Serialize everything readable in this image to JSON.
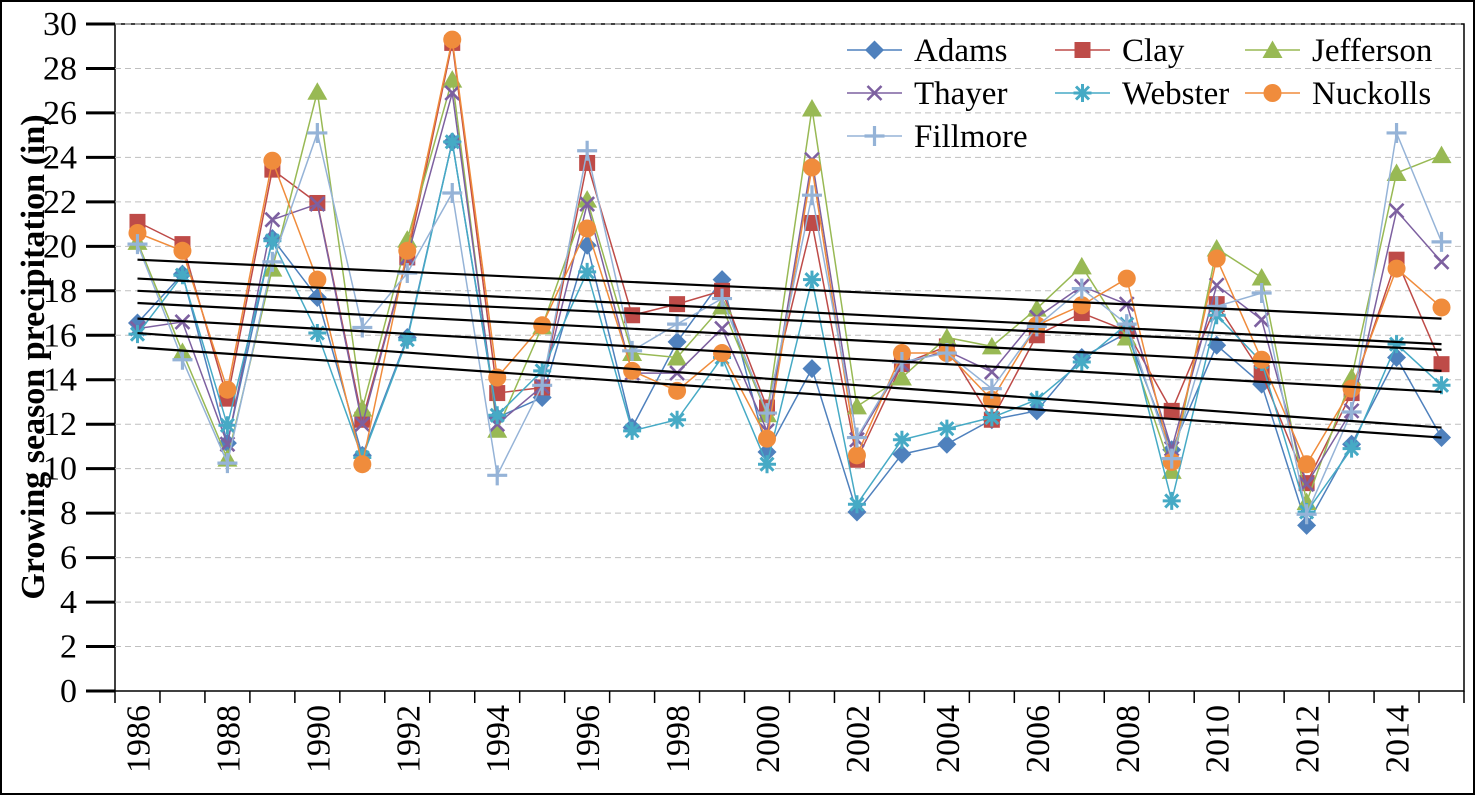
{
  "chart_data": {
    "type": "line",
    "title": "",
    "xlabel": "",
    "ylabel": "Growing season precipitation (in)",
    "ylim": [
      0,
      30
    ],
    "ytick_step": 2,
    "grid": "horizontal-dashed",
    "legend_position": "inside-top-right, 3 columns",
    "x": [
      1986,
      1987,
      1988,
      1989,
      1990,
      1991,
      1992,
      1993,
      1994,
      1995,
      1996,
      1997,
      1998,
      1999,
      2000,
      2001,
      2002,
      2003,
      2004,
      2005,
      2006,
      2007,
      2008,
      2009,
      2010,
      2011,
      2012,
      2013,
      2014,
      2015
    ],
    "x_label_every": 2,
    "series": [
      {
        "name": "Adams",
        "marker": "diamond",
        "color": "#4F81BD",
        "values": [
          16.55,
          18.75,
          11.15,
          20.35,
          17.7,
          10.6,
          15.9,
          24.7,
          12.3,
          13.2,
          20.05,
          11.85,
          15.7,
          18.5,
          10.75,
          14.5,
          8.05,
          10.65,
          11.1,
          12.2,
          12.6,
          15.0,
          16.1,
          10.85,
          15.55,
          13.8,
          7.45,
          11.1,
          15.0,
          11.4
        ]
      },
      {
        "name": "Clay",
        "marker": "square",
        "color": "#BE4B48",
        "values": [
          21.1,
          20.1,
          13.15,
          23.45,
          21.95,
          12.2,
          19.5,
          29.15,
          13.4,
          13.65,
          23.75,
          16.9,
          17.4,
          18.0,
          12.75,
          21.05,
          10.4,
          14.7,
          15.5,
          12.2,
          16.0,
          17.0,
          16.2,
          12.6,
          17.4,
          14.3,
          9.35,
          13.4,
          19.4,
          14.7
        ]
      },
      {
        "name": "Jefferson",
        "marker": "triangle",
        "color": "#98B954",
        "values": [
          20.2,
          15.25,
          10.45,
          19.0,
          26.95,
          12.7,
          20.3,
          27.5,
          11.75,
          16.4,
          22.1,
          15.2,
          15.0,
          17.3,
          12.45,
          26.2,
          12.8,
          14.1,
          15.9,
          15.5,
          17.2,
          19.1,
          15.9,
          9.9,
          19.9,
          18.6,
          8.5,
          14.1,
          23.3,
          24.1
        ]
      },
      {
        "name": "Thayer",
        "marker": "x",
        "color": "#7D60A0",
        "values": [
          16.3,
          16.6,
          11.1,
          21.2,
          21.9,
          12.0,
          19.5,
          26.9,
          12.0,
          13.7,
          21.9,
          14.3,
          14.3,
          16.3,
          11.7,
          23.9,
          11.3,
          14.7,
          15.3,
          14.35,
          16.8,
          18.2,
          17.4,
          10.9,
          18.25,
          16.7,
          9.3,
          12.6,
          21.6,
          19.3
        ]
      },
      {
        "name": "Webster",
        "marker": "star",
        "color": "#46AAC5",
        "values": [
          16.05,
          18.7,
          11.95,
          20.25,
          16.1,
          10.5,
          15.8,
          24.7,
          12.4,
          14.4,
          18.85,
          11.7,
          12.2,
          15.0,
          10.2,
          18.5,
          8.4,
          11.3,
          11.8,
          12.3,
          13.1,
          14.8,
          16.5,
          8.55,
          16.9,
          14.8,
          8.05,
          10.9,
          15.6,
          13.75
        ]
      },
      {
        "name": "Nuckolls",
        "marker": "circle",
        "color": "#F08C3C",
        "values": [
          20.6,
          19.8,
          13.55,
          23.85,
          18.5,
          10.2,
          19.8,
          29.3,
          14.1,
          16.45,
          20.8,
          14.4,
          13.5,
          15.2,
          11.35,
          23.55,
          10.6,
          15.2,
          15.2,
          13.1,
          16.45,
          17.35,
          18.55,
          10.3,
          19.45,
          14.9,
          10.2,
          13.6,
          19.0,
          17.25
        ]
      },
      {
        "name": "Fillmore",
        "marker": "plus",
        "color": "#95B3D7",
        "values": [
          20.1,
          14.9,
          10.25,
          19.3,
          25.1,
          16.35,
          18.8,
          22.4,
          9.7,
          13.75,
          24.3,
          15.3,
          16.5,
          17.65,
          12.5,
          22.3,
          11.4,
          14.8,
          15.2,
          13.6,
          16.4,
          18.1,
          16.5,
          10.45,
          17.3,
          17.9,
          7.95,
          12.55,
          25.1,
          20.2
        ]
      }
    ],
    "trendlines": {
      "color": "#000000",
      "x_span": [
        1986,
        2015
      ],
      "lines": [
        {
          "start": 19.4,
          "end": 16.75
        },
        {
          "start": 18.55,
          "end": 15.6
        },
        {
          "start": 18.0,
          "end": 15.35
        },
        {
          "start": 17.45,
          "end": 14.4
        },
        {
          "start": 16.75,
          "end": 13.45
        },
        {
          "start": 16.1,
          "end": 11.85
        },
        {
          "start": 15.45,
          "end": 11.4
        }
      ]
    },
    "legend_order": [
      "Adams",
      "Clay",
      "Jefferson",
      "Thayer",
      "Webster",
      "Nuckolls",
      "Fillmore"
    ]
  }
}
